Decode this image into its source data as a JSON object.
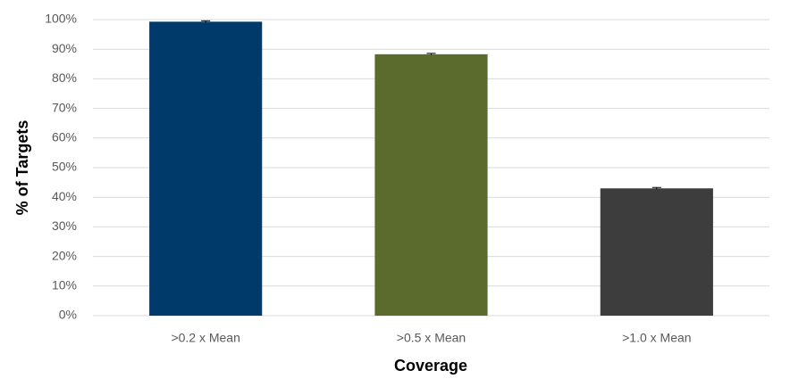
{
  "chart_data": {
    "type": "bar",
    "x_label": "Coverage",
    "y_label": "% of Targets",
    "categories": [
      ">0.2 x Mean",
      ">0.5 x Mean",
      ">1.0 x Mean"
    ],
    "values": [
      99.3,
      88.3,
      43.0
    ],
    "errors": [
      0.3,
      0.3,
      0.3
    ],
    "colors": [
      "#003a6b",
      "#5a6b2d",
      "#3d3d3d"
    ],
    "ylim": [
      0,
      100
    ],
    "yticks": [
      {
        "value": 0,
        "label": "0%"
      },
      {
        "value": 10,
        "label": "10%"
      },
      {
        "value": 20,
        "label": "20%"
      },
      {
        "value": 30,
        "label": "30%"
      },
      {
        "value": 40,
        "label": "40%"
      },
      {
        "value": 50,
        "label": "50%"
      },
      {
        "value": 60,
        "label": "60%"
      },
      {
        "value": 70,
        "label": "70%"
      },
      {
        "value": 80,
        "label": "80%"
      },
      {
        "value": 90,
        "label": "90%"
      },
      {
        "value": 100,
        "label": "100%"
      }
    ],
    "grid": true
  }
}
